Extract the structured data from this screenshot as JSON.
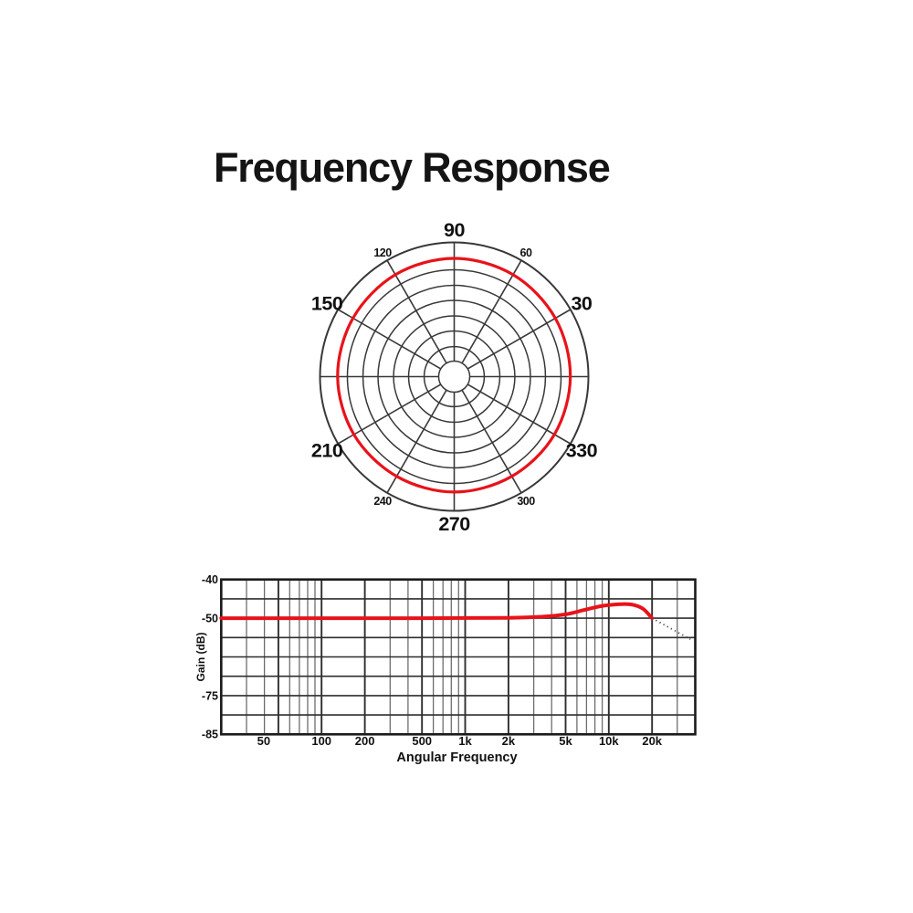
{
  "page": {
    "title": "Frequency Response",
    "background": "#ffffff"
  },
  "colors": {
    "response_red": "#e8131a",
    "grid_dark": "#2e2e2e",
    "grid_minor": "#6e6e6e",
    "polar_grid": "#383838",
    "frame": "#1b1b1b",
    "dotted": "#4a4a4a",
    "text": "#111111"
  },
  "chart_data": [
    {
      "type": "polar",
      "name": "polar-pattern",
      "title": "",
      "spoke_step_deg": 30,
      "ring_fractions": [
        0.116,
        0.224,
        0.34,
        0.452,
        0.568,
        0.68,
        0.796,
        1.0
      ],
      "angle_ticks": [
        {
          "angle": 30,
          "label": "30",
          "size": "large"
        },
        {
          "angle": 60,
          "label": "60",
          "size": "small"
        },
        {
          "angle": 90,
          "label": "90",
          "size": "large"
        },
        {
          "angle": 120,
          "label": "120",
          "size": "small"
        },
        {
          "angle": 150,
          "label": "150",
          "size": "large"
        },
        {
          "angle": 210,
          "label": "210",
          "size": "large"
        },
        {
          "angle": 240,
          "label": "240",
          "size": "small"
        },
        {
          "angle": 270,
          "label": "270",
          "size": "large"
        },
        {
          "angle": 300,
          "label": "300",
          "size": "small"
        },
        {
          "angle": 330,
          "label": "330",
          "size": "large"
        }
      ],
      "series": [
        {
          "name": "response",
          "points_deg_fraction": [
            [
              0,
              0.865
            ],
            [
              30,
              0.87
            ],
            [
              60,
              0.877
            ],
            [
              90,
              0.881
            ],
            [
              120,
              0.877
            ],
            [
              150,
              0.871
            ],
            [
              180,
              0.869
            ],
            [
              210,
              0.863
            ],
            [
              240,
              0.858
            ],
            [
              270,
              0.86
            ],
            [
              300,
              0.858
            ],
            [
              330,
              0.862
            ]
          ]
        }
      ]
    },
    {
      "type": "line",
      "name": "frequency-response",
      "xlabel": "Angular Frequency",
      "ylabel": "Gain (dB)",
      "x_log": true,
      "xlim": [
        20,
        40000
      ],
      "x_major_ticks": [
        {
          "f": 50,
          "label": "50",
          "dx": -16
        },
        {
          "f": 100,
          "label": "100"
        },
        {
          "f": 200,
          "label": "200"
        },
        {
          "f": 500,
          "label": "500"
        },
        {
          "f": 1000,
          "label": "1k"
        },
        {
          "f": 2000,
          "label": "2k"
        },
        {
          "f": 5000,
          "label": "5k"
        },
        {
          "f": 10000,
          "label": "10k"
        },
        {
          "f": 20000,
          "label": "20k"
        }
      ],
      "x_minor_gridlines": [
        30,
        40,
        60,
        70,
        80,
        90,
        300,
        400,
        600,
        700,
        800,
        900,
        3000,
        4000,
        6000,
        7000,
        8000,
        9000,
        30000
      ],
      "y_gridline_count": 9,
      "y_ticks": [
        {
          "label": "-40",
          "line_index": 0
        },
        {
          "label": "-50",
          "line_index": 2
        },
        {
          "label": "-75",
          "line_index": 6
        },
        {
          "label": "-85",
          "line_index": 8
        }
      ],
      "y_anchors_db_line": [
        [
          -40,
          0
        ],
        [
          -50,
          2
        ],
        [
          -75,
          6
        ],
        [
          -85,
          8
        ]
      ],
      "series": [
        {
          "name": "gain",
          "style": "solid",
          "points": [
            [
              20,
              -50
            ],
            [
              500,
              -50
            ],
            [
              2000,
              -49.9
            ],
            [
              3500,
              -49.6
            ],
            [
              5000,
              -49.0
            ],
            [
              6700,
              -47.9
            ],
            [
              8500,
              -47.0
            ],
            [
              10000,
              -46.6
            ],
            [
              13000,
              -46.35
            ],
            [
              15000,
              -46.6
            ],
            [
              17500,
              -47.7
            ],
            [
              20000,
              -50
            ]
          ]
        },
        {
          "name": "gain-extended",
          "style": "dotted",
          "points": [
            [
              20000,
              -50
            ],
            [
              37000,
              -56.8
            ]
          ]
        }
      ]
    }
  ]
}
